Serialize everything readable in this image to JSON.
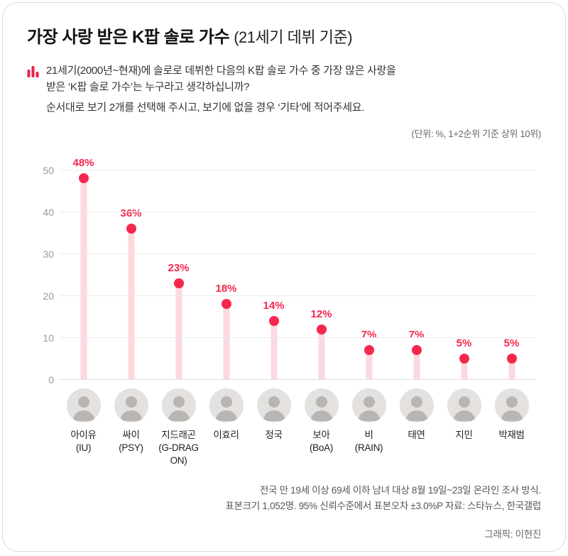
{
  "header": {
    "title": "가장 사랑 받은 K팝 솔로 가수",
    "subtitle": "(21세기 데뷔 기준)"
  },
  "question": {
    "lines": [
      "21세기(2000년~현재)에 솔로로 데뷔한 다음의 K팝 솔로 가수 중 가장 많은 사랑을",
      "받은 ‘K팝 솔로 가수’는 누구라고 생각하십니까?",
      "순서대로 보기 2개를 선택해 주시고, 보기에 없을 경우 ‘기타’에 적어주세요."
    ]
  },
  "chart_data": {
    "type": "bar",
    "title": "가장 사랑 받은 K팝 솔로 가수 (21세기 데뷔 기준)",
    "unit_note": "(단위: %, 1+2순위 기준 상위 10위)",
    "ylim": [
      0,
      55
    ],
    "yticks": [
      0,
      10,
      20,
      30,
      40,
      50
    ],
    "grid": true,
    "categories": [
      "아이유 (IU)",
      "싸이 (PSY)",
      "지드래곤 (G-DRAGON)",
      "이효리",
      "정국",
      "보아 (BoA)",
      "비 (RAIN)",
      "태연",
      "지민",
      "박재범"
    ],
    "values": [
      48,
      36,
      23,
      18,
      14,
      12,
      7,
      7,
      5,
      5
    ],
    "artists": [
      {
        "name": "아이유",
        "sub": "(IU)",
        "value": 48
      },
      {
        "name": "싸이",
        "sub": "(PSY)",
        "value": 36
      },
      {
        "name": "지드래곤",
        "sub": "(G-DRAGON)",
        "value": 23
      },
      {
        "name": "이효리",
        "sub": "",
        "value": 18
      },
      {
        "name": "정국",
        "sub": "",
        "value": 14
      },
      {
        "name": "보아",
        "sub": "(BoA)",
        "value": 12
      },
      {
        "name": "비",
        "sub": "(RAIN)",
        "value": 7
      },
      {
        "name": "태연",
        "sub": "",
        "value": 7
      },
      {
        "name": "지민",
        "sub": "",
        "value": 5
      },
      {
        "name": "박재범",
        "sub": "",
        "value": 5
      }
    ],
    "colors": {
      "bar": "#fbd9de",
      "dot": "#f5274e",
      "value_label": "#f5274e",
      "icon": "#e8244a"
    }
  },
  "footer": {
    "lines": [
      "전국 만 19세 이상 69세 이하 남녀 대상 8월 19일~23일 온라인 조사 방식.",
      "표본크기 1,052명. 95% 신뢰수준에서 표본오차 ±3.0%P 자료: 스타뉴스, 한국갤럽"
    ],
    "credit": "그래픽: 이현진"
  }
}
